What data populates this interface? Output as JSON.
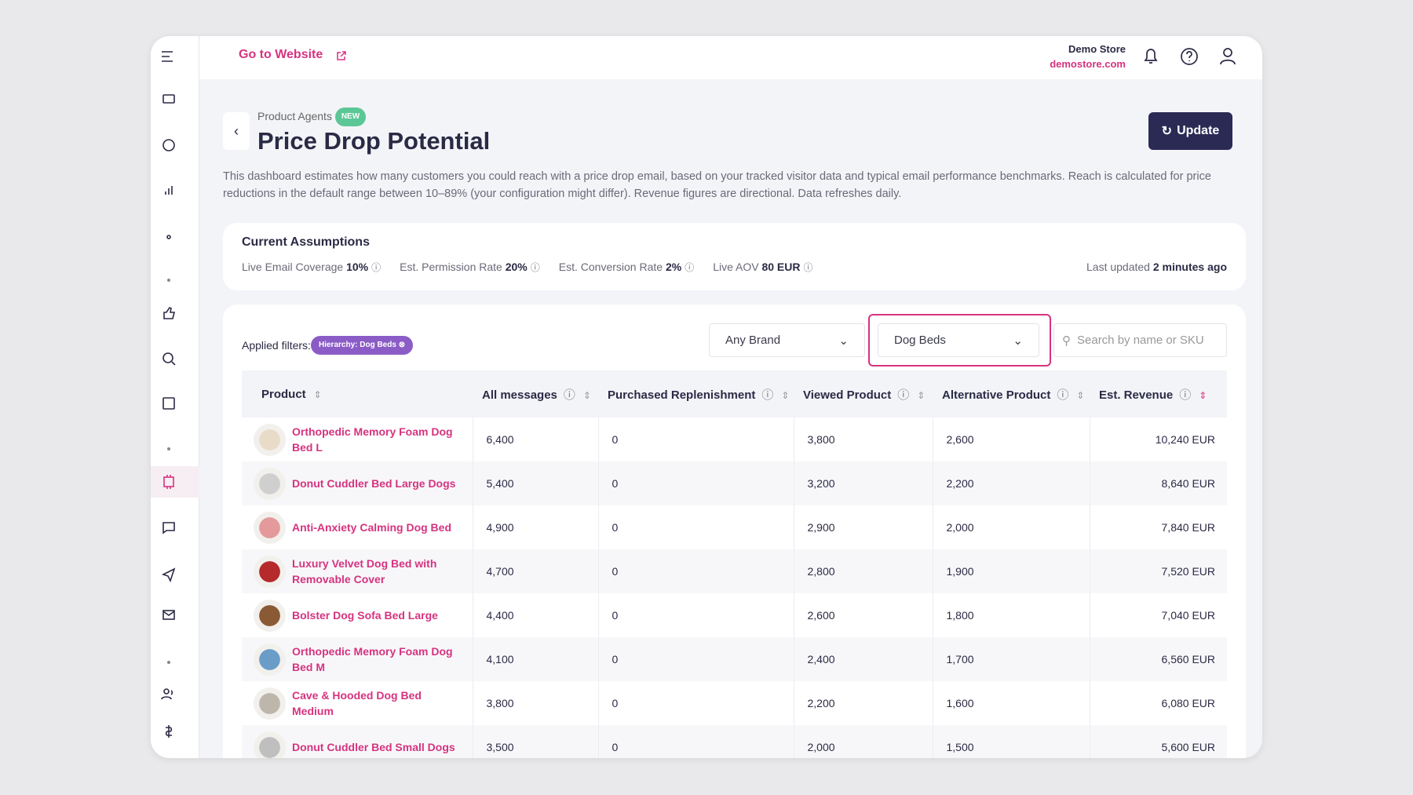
{
  "topbar": {
    "link": "Go to Website",
    "store_name": "Demo Store",
    "store_url": "demostore.com"
  },
  "page": {
    "breadcrumb": "Product Agents",
    "badge": "NEW",
    "title": "Price Drop Potential",
    "button": "Update",
    "description": "This dashboard estimates how many customers you could reach with a price drop email, based on your tracked visitor data and typical email performance benchmarks. Reach is calculated for price reductions in the default range between 10–89% (your configuration might differ). Revenue figures are directional. Data refreshes daily."
  },
  "assumptions": {
    "title": "Current Assumptions",
    "items": [
      {
        "label": "Live Email Coverage",
        "value": "10%"
      },
      {
        "label": "Est. Permission Rate",
        "value": "20%"
      },
      {
        "label": "Est. Conversion Rate",
        "value": "2%"
      },
      {
        "label": "Live AOV",
        "value": "80 EUR"
      }
    ],
    "updated_label": "Last updated",
    "updated_value": "2 minutes ago"
  },
  "filters": {
    "label": "Applied filters:",
    "chip": "Hierarchy: Dog Beds",
    "brand": "Any Brand",
    "category": "Dog Beds",
    "search_placeholder": "Search by name or SKU"
  },
  "table": {
    "columns": [
      "Product",
      "All messages",
      "Purchased Replenishment",
      "Viewed Product",
      "Alternative Product",
      "Est. Revenue"
    ],
    "rows": [
      [
        "Orthopedic Memory Foam Dog Bed L",
        "6,400",
        "0",
        "3,800",
        "2,600",
        "10,240 EUR"
      ],
      [
        "Donut Cuddler Bed Large Dogs",
        "5,400",
        "0",
        "3,200",
        "2,200",
        "8,640 EUR"
      ],
      [
        "Anti-Anxiety Calming Dog Bed",
        "4,900",
        "0",
        "2,900",
        "2,000",
        "7,840 EUR"
      ],
      [
        "Luxury Velvet Dog Bed with Removable Cover",
        "4,700",
        "0",
        "2,800",
        "1,900",
        "7,520 EUR"
      ],
      [
        "Bolster Dog Sofa Bed Large",
        "4,400",
        "0",
        "2,600",
        "1,800",
        "7,040 EUR"
      ],
      [
        "Orthopedic Memory Foam Dog Bed M",
        "4,100",
        "0",
        "2,400",
        "1,700",
        "6,560 EUR"
      ],
      [
        "Cave & Hooded Dog Bed Medium",
        "3,800",
        "0",
        "2,200",
        "1,600",
        "6,080 EUR"
      ],
      [
        "Donut Cuddler Bed Small Dogs",
        "3,500",
        "0",
        "2,000",
        "1,500",
        "5,600 EUR"
      ]
    ]
  }
}
